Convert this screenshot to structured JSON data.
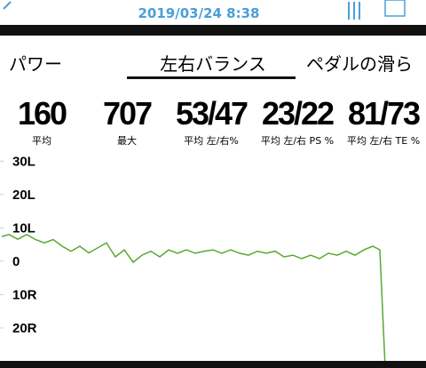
{
  "header": {
    "datetime": "2019/03/24 8:38"
  },
  "tabs": [
    "パワー",
    "左右バランス",
    "ペダルの滑ら"
  ],
  "stats": [
    {
      "value": "160",
      "label": "平均"
    },
    {
      "value": "707",
      "label": "最大"
    },
    {
      "value": "53/47",
      "label": "平均 左/右%"
    },
    {
      "value": "23/22",
      "label": "平均 左/右 PS %"
    },
    {
      "value": "81/73",
      "label": "平均 左/右 TE %"
    }
  ],
  "chart_data": {
    "type": "line",
    "x": [
      2,
      10,
      20,
      30,
      40,
      50,
      60,
      70,
      80,
      90,
      100,
      110,
      120,
      130,
      140,
      150,
      160,
      170,
      180,
      190,
      200,
      210,
      220,
      230,
      240,
      250,
      260,
      270,
      280,
      290,
      300,
      310,
      320,
      330,
      340,
      350,
      360,
      370,
      380,
      390,
      400,
      410,
      420,
      428,
      434
    ],
    "series": [
      {
        "color": "#5aa832",
        "values": [
          7.4,
          8,
          6.6,
          8,
          6.5,
          5.5,
          6.5,
          4.5,
          3,
          4.5,
          2.5,
          4,
          5.5,
          1.3,
          3.4,
          -0.3,
          1.8,
          3,
          1.3,
          3.4,
          2.4,
          3.4,
          2.4,
          3,
          3.4,
          2.4,
          3.4,
          2.4,
          1.8,
          3,
          2.4,
          3,
          1.3,
          1.8,
          0.8,
          1.8,
          0.8,
          2.4,
          1.8,
          3,
          1.8,
          3.4,
          4.5,
          3.4,
          -32
        ]
      }
    ],
    "xlim": [
      0,
      480
    ],
    "ylim": [
      -32,
      33
    ],
    "yticks": [
      {
        "value": 30,
        "label": "30L"
      },
      {
        "value": 20,
        "label": "20L"
      },
      {
        "value": 10,
        "label": "10L"
      },
      0,
      {
        "value": -10,
        "label": "10R"
      },
      {
        "value": -20,
        "label": "20R"
      }
    ],
    "grid": false
  }
}
